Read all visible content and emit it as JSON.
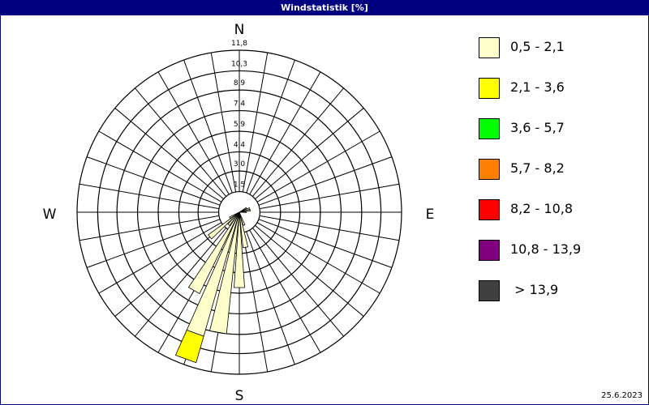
{
  "title": "Windstatistik [%]",
  "date": "25.6.2023",
  "chart_data": {
    "type": "wind-rose",
    "title": "Windstatistik [%]",
    "unit": "%",
    "compass_labels": {
      "N": "N",
      "E": "E",
      "S": "S",
      "W": "W"
    },
    "ring_labels": [
      "1,5",
      "3,0",
      "4,4",
      "5,9",
      "7,4",
      "8,9",
      "10,3",
      "11,8"
    ],
    "ring_values": [
      1.5,
      3.0,
      4.4,
      5.9,
      7.4,
      8.9,
      10.3,
      11.8
    ],
    "rmax": 11.8,
    "direction_step_deg": 10,
    "legend": [
      {
        "label": "0,5 - 2,1",
        "color": "#ffffcc"
      },
      {
        "label": "2,1 - 3,6",
        "color": "#ffff00"
      },
      {
        "label": "3,6 - 5,7",
        "color": "#00ff00"
      },
      {
        "label": "5,7 - 8,2",
        "color": "#ff8000"
      },
      {
        "label": "8,2 - 10,8",
        "color": "#ff0000"
      },
      {
        "label": "10,8 - 13,9",
        "color": "#800080"
      },
      {
        "label": " > 13,9",
        "color": "#404040"
      }
    ],
    "petals": [
      {
        "direction": 60,
        "values": [
          0.6
        ]
      },
      {
        "direction": 70,
        "values": [
          0.8
        ]
      },
      {
        "direction": 80,
        "values": [
          0.8
        ]
      },
      {
        "direction": 90,
        "values": [
          0.5
        ]
      },
      {
        "direction": 160,
        "values": [
          1.0
        ]
      },
      {
        "direction": 170,
        "values": [
          2.6
        ]
      },
      {
        "direction": 180,
        "values": [
          5.5
        ]
      },
      {
        "direction": 190,
        "values": [
          8.9
        ]
      },
      {
        "direction": 200,
        "values": [
          9.4,
          2.0
        ]
      },
      {
        "direction": 210,
        "values": [
          6.6
        ]
      },
      {
        "direction": 220,
        "values": [
          1.2
        ]
      },
      {
        "direction": 230,
        "values": [
          2.8
        ]
      },
      {
        "direction": 240,
        "values": [
          0.8
        ]
      }
    ]
  }
}
